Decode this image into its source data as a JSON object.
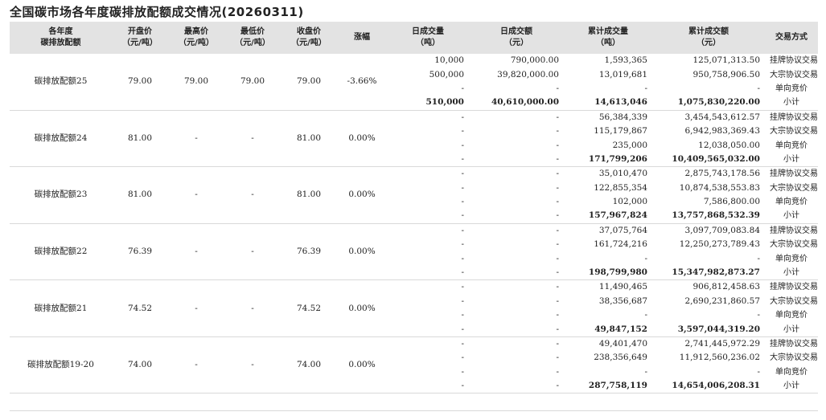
{
  "title": "全国碳市场各年度碳排放配额成交情况(20260311)",
  "columns": [
    {
      "line1": "各年度",
      "line2": "碳排放配额"
    },
    {
      "line1": "开盘价",
      "line2": "（元/吨）"
    },
    {
      "line1": "最高价",
      "line2": "（元/吨）"
    },
    {
      "line1": "最低价",
      "line2": "（元/吨）"
    },
    {
      "line1": "收盘价",
      "line2": "（元/吨）"
    },
    {
      "line1": "涨幅",
      "line2": ""
    },
    {
      "line1": "日成交量",
      "line2": "（吨）"
    },
    {
      "line1": "日成交额",
      "line2": "（元）"
    },
    {
      "line1": "累计成交量",
      "line2": "（吨）"
    },
    {
      "line1": "累计成交额",
      "line2": "（元）"
    },
    {
      "line1": "交易方式",
      "line2": ""
    }
  ],
  "groups": [
    {
      "name": "碳排放配额25",
      "open": "79.00",
      "high": "79.00",
      "low": "79.00",
      "close": "79.00",
      "change": "-3.66%",
      "rows": [
        {
          "dv": "10,000",
          "da": "790,000.00",
          "cv": "1,593,365",
          "ca": "125,071,313.50",
          "m": "挂牌协议交易"
        },
        {
          "dv": "500,000",
          "da": "39,820,000.00",
          "cv": "13,019,681",
          "ca": "950,758,906.50",
          "m": "大宗协议交易"
        },
        {
          "dv": "-",
          "da": "-",
          "cv": "-",
          "ca": "-",
          "m": "单向竞价"
        },
        {
          "dv": "510,000",
          "da": "40,610,000.00",
          "cv": "14,613,046",
          "ca": "1,075,830,220.00",
          "m": "小计"
        }
      ]
    },
    {
      "name": "碳排放配额24",
      "open": "81.00",
      "high": "-",
      "low": "-",
      "close": "81.00",
      "change": "0.00%",
      "rows": [
        {
          "dv": "-",
          "da": "-",
          "cv": "56,384,339",
          "ca": "3,454,543,612.57",
          "m": "挂牌协议交易"
        },
        {
          "dv": "-",
          "da": "-",
          "cv": "115,179,867",
          "ca": "6,942,983,369.43",
          "m": "大宗协议交易"
        },
        {
          "dv": "-",
          "da": "-",
          "cv": "235,000",
          "ca": "12,038,050.00",
          "m": "单向竞价"
        },
        {
          "dv": "-",
          "da": "-",
          "cv": "171,799,206",
          "ca": "10,409,565,032.00",
          "m": "小计"
        }
      ]
    },
    {
      "name": "碳排放配额23",
      "open": "81.00",
      "high": "-",
      "low": "-",
      "close": "81.00",
      "change": "0.00%",
      "rows": [
        {
          "dv": "-",
          "da": "-",
          "cv": "35,010,470",
          "ca": "2,875,743,178.56",
          "m": "挂牌协议交易"
        },
        {
          "dv": "-",
          "da": "-",
          "cv": "122,855,354",
          "ca": "10,874,538,553.83",
          "m": "大宗协议交易"
        },
        {
          "dv": "-",
          "da": "-",
          "cv": "102,000",
          "ca": "7,586,800.00",
          "m": "单向竞价"
        },
        {
          "dv": "-",
          "da": "-",
          "cv": "157,967,824",
          "ca": "13,757,868,532.39",
          "m": "小计"
        }
      ]
    },
    {
      "name": "碳排放配额22",
      "open": "76.39",
      "high": "-",
      "low": "-",
      "close": "76.39",
      "change": "0.00%",
      "rows": [
        {
          "dv": "-",
          "da": "-",
          "cv": "37,075,764",
          "ca": "3,097,709,083.84",
          "m": "挂牌协议交易"
        },
        {
          "dv": "-",
          "da": "-",
          "cv": "161,724,216",
          "ca": "12,250,273,789.43",
          "m": "大宗协议交易"
        },
        {
          "dv": "-",
          "da": "-",
          "cv": "-",
          "ca": "-",
          "m": "单向竞价"
        },
        {
          "dv": "-",
          "da": "-",
          "cv": "198,799,980",
          "ca": "15,347,982,873.27",
          "m": "小计"
        }
      ]
    },
    {
      "name": "碳排放配额21",
      "open": "74.52",
      "high": "-",
      "low": "-",
      "close": "74.52",
      "change": "0.00%",
      "rows": [
        {
          "dv": "-",
          "da": "-",
          "cv": "11,490,465",
          "ca": "906,812,458.63",
          "m": "挂牌协议交易"
        },
        {
          "dv": "-",
          "da": "-",
          "cv": "38,356,687",
          "ca": "2,690,231,860.57",
          "m": "大宗协议交易"
        },
        {
          "dv": "-",
          "da": "-",
          "cv": "-",
          "ca": "-",
          "m": "单向竞价"
        },
        {
          "dv": "-",
          "da": "-",
          "cv": "49,847,152",
          "ca": "3,597,044,319.20",
          "m": "小计"
        }
      ]
    },
    {
      "name": "碳排放配额19-20",
      "open": "74.00",
      "high": "-",
      "low": "-",
      "close": "74.00",
      "change": "0.00%",
      "rows": [
        {
          "dv": "-",
          "da": "-",
          "cv": "49,401,470",
          "ca": "2,741,445,972.29",
          "m": "挂牌协议交易"
        },
        {
          "dv": "-",
          "da": "-",
          "cv": "238,356,649",
          "ca": "11,912,560,236.02",
          "m": "大宗协议交易"
        },
        {
          "dv": "-",
          "da": "-",
          "cv": "-",
          "ca": "-",
          "m": "单向竞价"
        },
        {
          "dv": "-",
          "da": "-",
          "cv": "287,758,119",
          "ca": "14,654,006,208.31",
          "m": "小计"
        }
      ]
    }
  ]
}
